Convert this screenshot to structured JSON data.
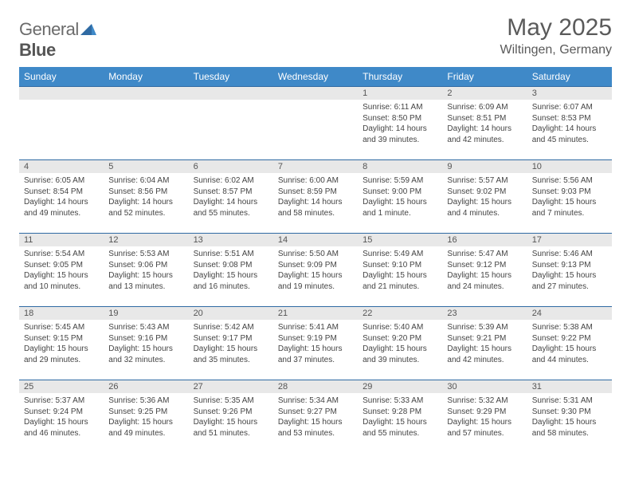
{
  "logo": {
    "text1": "General",
    "text2": "Blue"
  },
  "title": "May 2025",
  "subtitle": "Wiltingen, Germany",
  "colors": {
    "header_bg": "#3f89c8",
    "header_text": "#ffffff",
    "row_border": "#2f6aa3",
    "daynum_bg": "#e8e8e8",
    "body_text": "#444444",
    "title_text": "#5a5a5a"
  },
  "weekdays": [
    "Sunday",
    "Monday",
    "Tuesday",
    "Wednesday",
    "Thursday",
    "Friday",
    "Saturday"
  ],
  "first_weekday_index": 4,
  "days": [
    {
      "n": 1,
      "sr": "6:11 AM",
      "ss": "8:50 PM",
      "dl": "14 hours and 39 minutes."
    },
    {
      "n": 2,
      "sr": "6:09 AM",
      "ss": "8:51 PM",
      "dl": "14 hours and 42 minutes."
    },
    {
      "n": 3,
      "sr": "6:07 AM",
      "ss": "8:53 PM",
      "dl": "14 hours and 45 minutes."
    },
    {
      "n": 4,
      "sr": "6:05 AM",
      "ss": "8:54 PM",
      "dl": "14 hours and 49 minutes."
    },
    {
      "n": 5,
      "sr": "6:04 AM",
      "ss": "8:56 PM",
      "dl": "14 hours and 52 minutes."
    },
    {
      "n": 6,
      "sr": "6:02 AM",
      "ss": "8:57 PM",
      "dl": "14 hours and 55 minutes."
    },
    {
      "n": 7,
      "sr": "6:00 AM",
      "ss": "8:59 PM",
      "dl": "14 hours and 58 minutes."
    },
    {
      "n": 8,
      "sr": "5:59 AM",
      "ss": "9:00 PM",
      "dl": "15 hours and 1 minute."
    },
    {
      "n": 9,
      "sr": "5:57 AM",
      "ss": "9:02 PM",
      "dl": "15 hours and 4 minutes."
    },
    {
      "n": 10,
      "sr": "5:56 AM",
      "ss": "9:03 PM",
      "dl": "15 hours and 7 minutes."
    },
    {
      "n": 11,
      "sr": "5:54 AM",
      "ss": "9:05 PM",
      "dl": "15 hours and 10 minutes."
    },
    {
      "n": 12,
      "sr": "5:53 AM",
      "ss": "9:06 PM",
      "dl": "15 hours and 13 minutes."
    },
    {
      "n": 13,
      "sr": "5:51 AM",
      "ss": "9:08 PM",
      "dl": "15 hours and 16 minutes."
    },
    {
      "n": 14,
      "sr": "5:50 AM",
      "ss": "9:09 PM",
      "dl": "15 hours and 19 minutes."
    },
    {
      "n": 15,
      "sr": "5:49 AM",
      "ss": "9:10 PM",
      "dl": "15 hours and 21 minutes."
    },
    {
      "n": 16,
      "sr": "5:47 AM",
      "ss": "9:12 PM",
      "dl": "15 hours and 24 minutes."
    },
    {
      "n": 17,
      "sr": "5:46 AM",
      "ss": "9:13 PM",
      "dl": "15 hours and 27 minutes."
    },
    {
      "n": 18,
      "sr": "5:45 AM",
      "ss": "9:15 PM",
      "dl": "15 hours and 29 minutes."
    },
    {
      "n": 19,
      "sr": "5:43 AM",
      "ss": "9:16 PM",
      "dl": "15 hours and 32 minutes."
    },
    {
      "n": 20,
      "sr": "5:42 AM",
      "ss": "9:17 PM",
      "dl": "15 hours and 35 minutes."
    },
    {
      "n": 21,
      "sr": "5:41 AM",
      "ss": "9:19 PM",
      "dl": "15 hours and 37 minutes."
    },
    {
      "n": 22,
      "sr": "5:40 AM",
      "ss": "9:20 PM",
      "dl": "15 hours and 39 minutes."
    },
    {
      "n": 23,
      "sr": "5:39 AM",
      "ss": "9:21 PM",
      "dl": "15 hours and 42 minutes."
    },
    {
      "n": 24,
      "sr": "5:38 AM",
      "ss": "9:22 PM",
      "dl": "15 hours and 44 minutes."
    },
    {
      "n": 25,
      "sr": "5:37 AM",
      "ss": "9:24 PM",
      "dl": "15 hours and 46 minutes."
    },
    {
      "n": 26,
      "sr": "5:36 AM",
      "ss": "9:25 PM",
      "dl": "15 hours and 49 minutes."
    },
    {
      "n": 27,
      "sr": "5:35 AM",
      "ss": "9:26 PM",
      "dl": "15 hours and 51 minutes."
    },
    {
      "n": 28,
      "sr": "5:34 AM",
      "ss": "9:27 PM",
      "dl": "15 hours and 53 minutes."
    },
    {
      "n": 29,
      "sr": "5:33 AM",
      "ss": "9:28 PM",
      "dl": "15 hours and 55 minutes."
    },
    {
      "n": 30,
      "sr": "5:32 AM",
      "ss": "9:29 PM",
      "dl": "15 hours and 57 minutes."
    },
    {
      "n": 31,
      "sr": "5:31 AM",
      "ss": "9:30 PM",
      "dl": "15 hours and 58 minutes."
    }
  ],
  "labels": {
    "sunrise": "Sunrise:",
    "sunset": "Sunset:",
    "daylight": "Daylight:"
  }
}
